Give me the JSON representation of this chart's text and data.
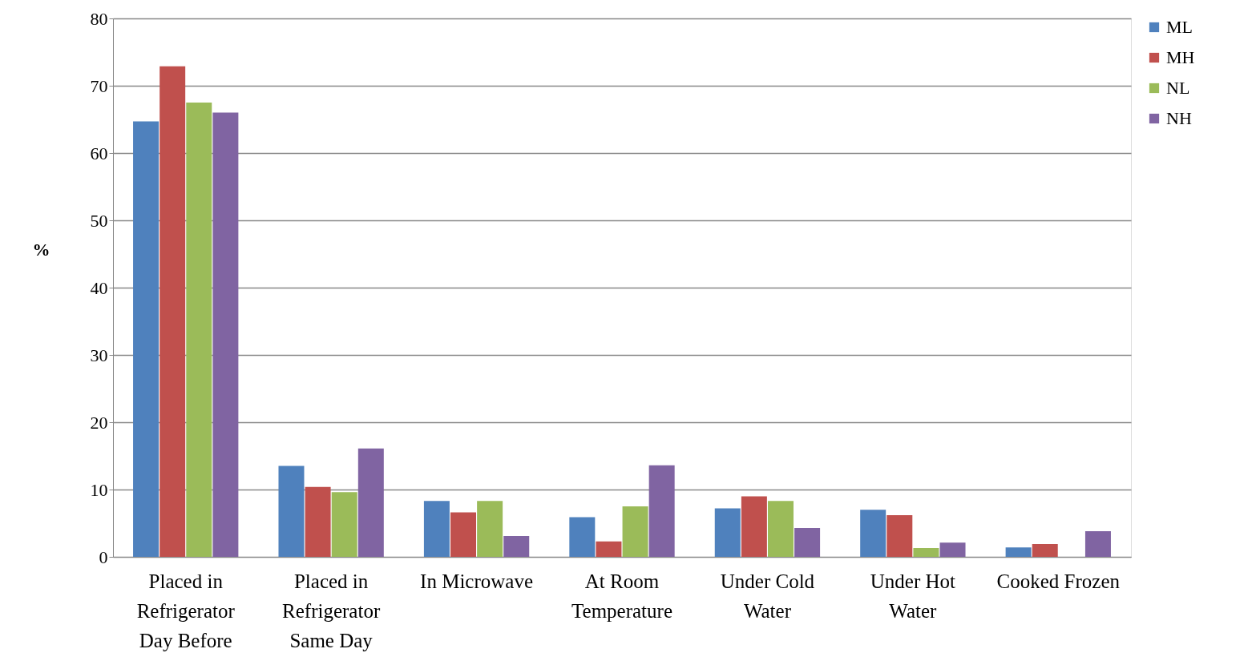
{
  "chart_data": {
    "type": "bar",
    "ylabel": "%",
    "categories": [
      "Placed in\nRefrigerator\nDay Before",
      "Placed in\nRefrigerator\nSame Day",
      "In Microwave",
      "At Room\nTemperature",
      "Under Cold\nWater",
      "Under Hot\nWater",
      "Cooked Frozen"
    ],
    "series": [
      {
        "name": "ML",
        "color": "#4f81bd",
        "values": [
          64.7,
          13.5,
          8.3,
          5.9,
          7.2,
          7.0,
          1.4
        ]
      },
      {
        "name": "MH",
        "color": "#c0504d",
        "values": [
          72.9,
          10.4,
          6.6,
          2.3,
          9.0,
          6.2,
          1.9
        ]
      },
      {
        "name": "NL",
        "color": "#9bbb59",
        "values": [
          67.5,
          9.6,
          8.3,
          7.5,
          8.3,
          1.3,
          null
        ]
      },
      {
        "name": "NH",
        "color": "#8064a2",
        "values": [
          66.0,
          16.1,
          3.1,
          13.6,
          4.3,
          2.1,
          3.8
        ]
      }
    ],
    "ylim": [
      0,
      80
    ],
    "yticks": [
      0,
      10,
      20,
      30,
      40,
      50,
      60,
      70,
      80
    ],
    "grid": "y",
    "legend": "right"
  }
}
